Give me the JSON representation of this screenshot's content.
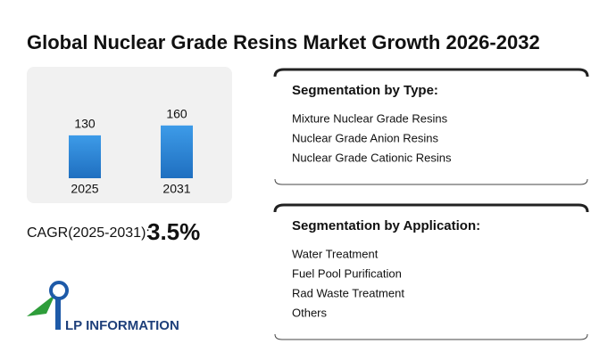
{
  "chart_data": {
    "type": "bar",
    "title": "Global Nuclear Grade Resins Market Growth 2026-2032",
    "categories": [
      "2025",
      "2031"
    ],
    "values": [
      130,
      160
    ],
    "color": "#2f86d6"
  },
  "cagr": {
    "label": "CAGR(2025-2031):",
    "value": "3.5%"
  },
  "segments": [
    {
      "heading": "Segmentation by Type:",
      "items": [
        "Mixture Nuclear Grade Resins",
        "Nuclear Grade Anion Resins",
        "Nuclear Grade Cationic Resins"
      ]
    },
    {
      "heading": "Segmentation by Application:",
      "items": [
        "Water Treatment",
        "Fuel Pool Purification",
        "Rad Waste Treatment",
        "Others"
      ]
    }
  ],
  "logo": "LP INFORMATION"
}
